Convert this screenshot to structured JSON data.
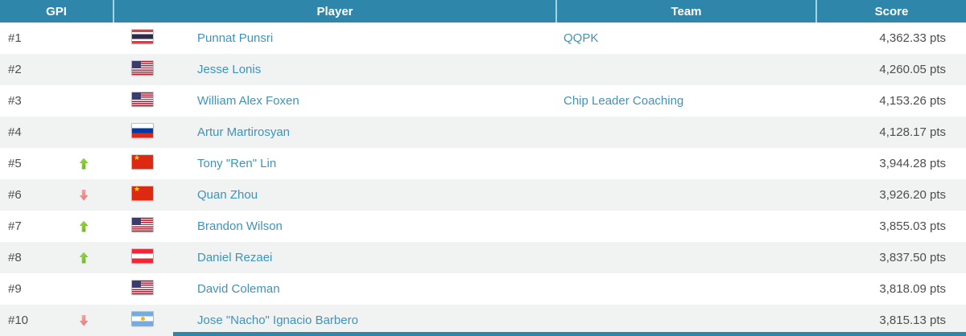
{
  "table": {
    "columns": [
      {
        "key": "gpi",
        "label": "GPI"
      },
      {
        "key": "player",
        "label": "Player"
      },
      {
        "key": "team",
        "label": "Team"
      },
      {
        "key": "score",
        "label": "Score"
      }
    ],
    "rows": [
      {
        "rank": "#1",
        "trend": "none",
        "country": "thailand",
        "player": "Punnat Punsri",
        "team": "QQPK",
        "score": "4,362.33 pts"
      },
      {
        "rank": "#2",
        "trend": "none",
        "country": "usa",
        "player": "Jesse Lonis",
        "team": "",
        "score": "4,260.05 pts"
      },
      {
        "rank": "#3",
        "trend": "none",
        "country": "usa",
        "player": "William Alex Foxen",
        "team": "Chip Leader Coaching",
        "score": "4,153.26 pts"
      },
      {
        "rank": "#4",
        "trend": "none",
        "country": "russia",
        "player": "Artur Martirosyan",
        "team": "",
        "score": "4,128.17 pts"
      },
      {
        "rank": "#5",
        "trend": "up",
        "country": "china",
        "player": "Tony \"Ren\" Lin",
        "team": "",
        "score": "3,944.28 pts"
      },
      {
        "rank": "#6",
        "trend": "down",
        "country": "china",
        "player": "Quan Zhou",
        "team": "",
        "score": "3,926.20 pts"
      },
      {
        "rank": "#7",
        "trend": "up",
        "country": "usa",
        "player": "Brandon Wilson",
        "team": "",
        "score": "3,855.03 pts"
      },
      {
        "rank": "#8",
        "trend": "up",
        "country": "austria",
        "player": "Daniel Rezaei",
        "team": "",
        "score": "3,837.50 pts"
      },
      {
        "rank": "#9",
        "trend": "none",
        "country": "usa",
        "player": "David Coleman",
        "team": "",
        "score": "3,818.09 pts"
      },
      {
        "rank": "#10",
        "trend": "down",
        "country": "argentina",
        "player": "Jose \"Nacho\" Ignacio Barbero",
        "team": "",
        "score": "3,815.13 pts"
      }
    ]
  },
  "colors": {
    "header_bg": "#2e86aa",
    "header_divider": "#a3d4e6",
    "row_bg": "#ffffff",
    "row_alt_bg": "#f1f2f2",
    "link_text": "#3e93ba",
    "plain_text": "#4d4e50",
    "trend_up": "#7cc12e",
    "trend_down": "#ee8585"
  }
}
